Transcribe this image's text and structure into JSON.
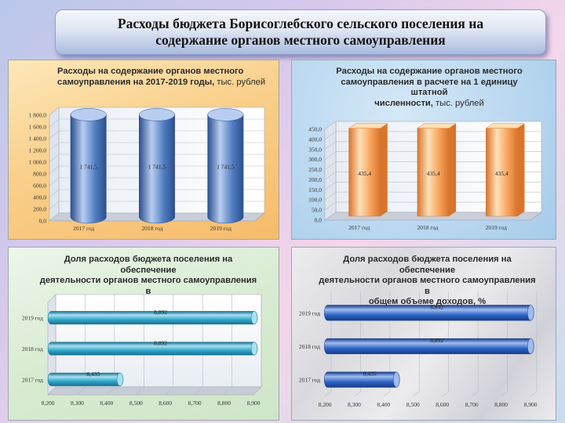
{
  "slide_title": "Расходы бюджета Борисоглебского сельского поселения на\nсодержание органов местного самоуправления",
  "chart_data": [
    {
      "type": "bar",
      "style": "3d-cylinder",
      "title": "Расходы на содержание органов местного\nсамоуправления на 2017-2019 годы,",
      "title_unit": "тыс. рублей",
      "categories": [
        "2017 год",
        "2018 год",
        "2019 год"
      ],
      "values": [
        1741.5,
        1741.5,
        1741.5
      ],
      "value_labels": [
        "1 741,5",
        "1 741,5",
        "1 741,5"
      ],
      "ylim": [
        0,
        1800
      ],
      "yticks": [
        "0,0",
        "200,0",
        "400,0",
        "600,0",
        "800,0",
        "1 000,0",
        "1 200,0",
        "1 400,0",
        "1 600,0",
        "1 800,0"
      ],
      "grid": true,
      "colors": {
        "bar": "#4f7cc0",
        "bar_dark": "#2c4f8e",
        "bar_light": "#b8cdf0"
      }
    },
    {
      "type": "bar",
      "style": "3d-box",
      "title": "Расходы на содержание органов местного\nсамоуправления в расчете на 1 единицу штатной\nчисленности,",
      "title_unit": "тыс. рублей",
      "categories": [
        "2017 год",
        "2018 год",
        "2019 год"
      ],
      "values": [
        435.4,
        435.4,
        435.4
      ],
      "value_labels": [
        "435,4",
        "435,4",
        "435,4"
      ],
      "ylim": [
        0,
        450
      ],
      "yticks": [
        "0,0",
        "50,0",
        "100,0",
        "150,0",
        "200,0",
        "250,0",
        "300,0",
        "350,0",
        "400,0",
        "450,0"
      ],
      "grid": true,
      "colors": {
        "bar": "#f7a25a",
        "bar_dark": "#d9742c",
        "bar_light": "#fde0b8"
      }
    },
    {
      "type": "bar",
      "orientation": "horizontal",
      "style": "3d-cylinder",
      "title": "Доля расходов бюджета поселения на обеспечение\nдеятельности органов местного самоуправления в\nобщем объеме расходов, %",
      "categories": [
        "2019 год",
        "2018 год",
        "2017 год"
      ],
      "values": [
        8.892,
        8.892,
        8.435
      ],
      "value_labels": [
        "8,892",
        "8,892",
        "8,435"
      ],
      "xlim": [
        8.2,
        8.9
      ],
      "xticks": [
        "8,200",
        "8,300",
        "8,400",
        "8,500",
        "8,600",
        "8,700",
        "8,800",
        "8,900"
      ],
      "grid": true,
      "colors": {
        "bar": "#2fa6c8",
        "bar_dark": "#17708f",
        "bar_light": "#a8e0f0"
      }
    },
    {
      "type": "bar",
      "orientation": "horizontal",
      "style": "3d-cylinder",
      "title": "Доля расходов бюджета поселения на обеспечение\nдеятельности органов местного самоуправления в\nобщем объеме доходов, %",
      "categories": [
        "2019 год",
        "2018 год",
        "2017 год"
      ],
      "values": [
        8.892,
        8.892,
        8.435
      ],
      "value_labels": [
        "8,892",
        "8,892",
        "8,435"
      ],
      "xlim": [
        8.2,
        8.9
      ],
      "xticks": [
        "8,200",
        "8,300",
        "8,400",
        "8,500",
        "8,600",
        "8,700",
        "8,800",
        "8,900"
      ],
      "grid": true,
      "colors": {
        "bar": "#2d62c4",
        "bar_dark": "#173d88",
        "bar_light": "#9fbdf0"
      }
    }
  ]
}
